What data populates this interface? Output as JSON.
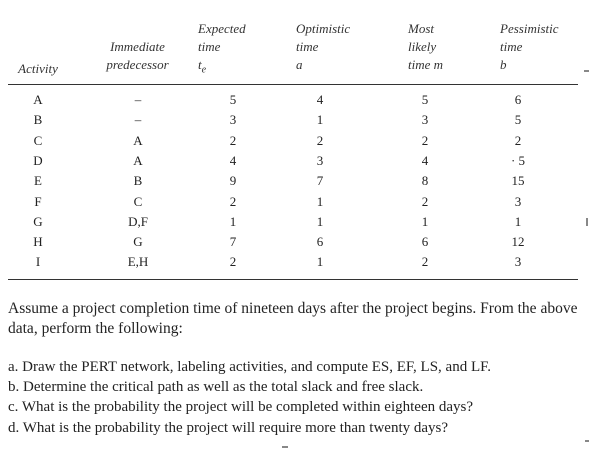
{
  "table": {
    "headers": [
      {
        "lines": [
          "",
          "",
          "Activity"
        ]
      },
      {
        "lines": [
          "",
          "Immediate",
          "predecessor"
        ]
      },
      {
        "lines": [
          "Expected",
          "time",
          "te"
        ]
      },
      {
        "lines": [
          "Optimistic",
          "time",
          "a"
        ]
      },
      {
        "lines": [
          "Most",
          "likely",
          "time m"
        ]
      },
      {
        "lines": [
          "Pessimistic",
          "time",
          "b"
        ]
      }
    ],
    "rows": [
      [
        "A",
        "–",
        "5",
        "4",
        "5",
        "6"
      ],
      [
        "B",
        "–",
        "3",
        "1",
        "3",
        "5"
      ],
      [
        "C",
        "A",
        "2",
        "2",
        "2",
        "2"
      ],
      [
        "D",
        "A",
        "4",
        "3",
        "4",
        "· 5"
      ],
      [
        "E",
        "B",
        "9",
        "7",
        "8",
        "15"
      ],
      [
        "F",
        "C",
        "2",
        "1",
        "2",
        "3"
      ],
      [
        "G",
        "D,F",
        "1",
        "1",
        "1",
        "1"
      ],
      [
        "H",
        "G",
        "7",
        "6",
        "6",
        "12"
      ],
      [
        "I",
        "E,H",
        "2",
        "1",
        "2",
        "3"
      ]
    ]
  },
  "paragraph": "Assume a project completion time of nineteen days after the project begins. From the above data, perform the following:",
  "questions": [
    "a. Draw the PERT network, labeling activities, and compute ES, EF, LS, and LF.",
    "b. Determine the critical path as well as the total slack and free slack.",
    "c. What is the probability the project will be completed within eighteen days?",
    "d. What is the probability the project will require more than twenty days?"
  ]
}
